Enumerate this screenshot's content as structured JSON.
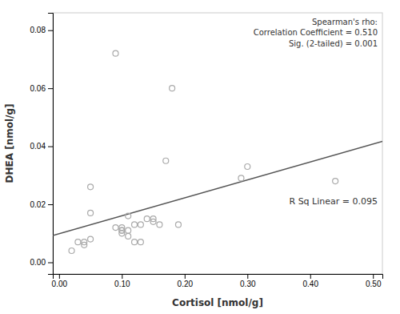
{
  "chart_data": {
    "type": "scatter",
    "x_label": "Cortisol [nmol/g]",
    "y_label": "DHEA [nmol/g]",
    "xlim": [
      -0.01,
      0.515
    ],
    "ylim": [
      -0.004,
      0.086
    ],
    "xticks": [
      {
        "value": 0.0,
        "label": "0.00"
      },
      {
        "value": 0.1,
        "label": "0.10"
      },
      {
        "value": 0.2,
        "label": "0.20"
      },
      {
        "value": 0.3,
        "label": "0.30"
      },
      {
        "value": 0.4,
        "label": "0.40"
      },
      {
        "value": 0.5,
        "label": "0.50"
      }
    ],
    "yticks": [
      {
        "value": 0.0,
        "label": "0.00"
      },
      {
        "value": 0.02,
        "label": "0.02"
      },
      {
        "value": 0.04,
        "label": "0.04"
      },
      {
        "value": 0.06,
        "label": "0.06"
      },
      {
        "value": 0.08,
        "label": "0.08"
      }
    ],
    "grid": false,
    "series": [
      {
        "type": "scatter",
        "marker": "circle",
        "color": "#aaaaaa",
        "x": [
          0.02,
          0.03,
          0.04,
          0.04,
          0.05,
          0.05,
          0.05,
          0.09,
          0.09,
          0.1,
          0.1,
          0.1,
          0.1,
          0.11,
          0.11,
          0.11,
          0.12,
          0.12,
          0.13,
          0.13,
          0.14,
          0.15,
          0.15,
          0.16,
          0.17,
          0.18,
          0.19,
          0.29,
          0.3,
          0.44
        ],
        "values": [
          0.004,
          0.007,
          0.007,
          0.006,
          0.017,
          0.008,
          0.026,
          0.072,
          0.012,
          0.011,
          0.012,
          0.01,
          0.011,
          0.016,
          0.011,
          0.009,
          0.013,
          0.007,
          0.007,
          0.013,
          0.015,
          0.014,
          0.015,
          0.013,
          0.035,
          0.06,
          0.013,
          0.029,
          0.033,
          0.028
        ]
      },
      {
        "type": "line",
        "line_style": "solid",
        "color": "#555555",
        "x": [
          -0.01,
          0.515
        ],
        "values": [
          0.00923,
          0.041677
        ]
      }
    ],
    "annotations": [
      "Spearman's rho:\nCorrelation Coefficient = 0.510\nSig. (2-tailed) = 0.001",
      "R Sq Linear = 0.095"
    ]
  }
}
